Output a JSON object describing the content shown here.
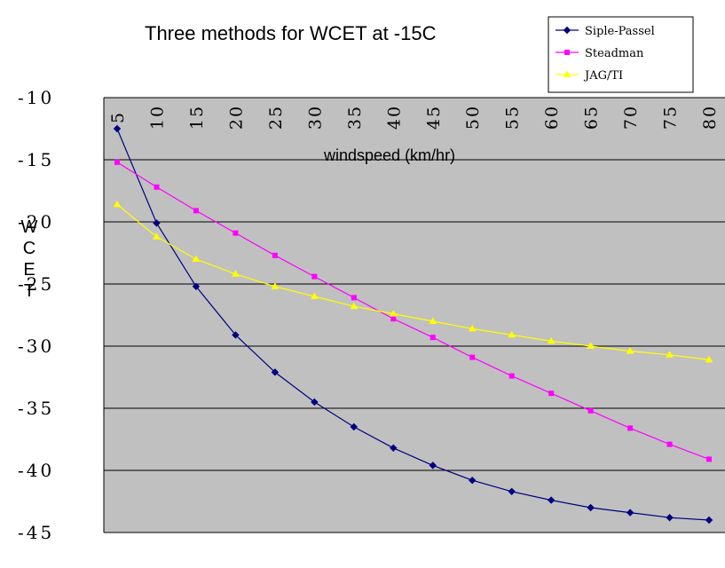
{
  "chart_data": {
    "type": "line",
    "title": "Three methods for WCET at -15C",
    "xlabel": "windspeed (km/hr)",
    "ylabel": "WCET",
    "x": [
      5,
      10,
      15,
      20,
      25,
      30,
      35,
      40,
      45,
      50,
      55,
      60,
      65,
      70,
      75,
      80
    ],
    "x_tick_labels": [
      "5",
      "10",
      "15",
      "20",
      "25",
      "30",
      "35",
      "40",
      "45",
      "50",
      "55",
      "60",
      "65",
      "70",
      "75",
      "80"
    ],
    "y_tick_labels": [
      "-10",
      "-15",
      "-20",
      "-25",
      "-30",
      "-35",
      "-40",
      "-45"
    ],
    "y_ticks": [
      -10,
      -15,
      -20,
      -25,
      -30,
      -35,
      -40,
      -45
    ],
    "ylim": [
      -45,
      -10
    ],
    "grid": true,
    "legend_position": "top-right",
    "background": "#c0c0c0",
    "series": [
      {
        "name": "Siple-Passel",
        "color": "#000080",
        "marker": "diamond",
        "values": [
          -12.5,
          -20.1,
          -25.2,
          -29.1,
          -32.1,
          -34.5,
          -36.5,
          -38.2,
          -39.6,
          -40.8,
          -41.7,
          -42.4,
          -43.0,
          -43.4,
          -43.8,
          -44.0
        ]
      },
      {
        "name": "Steadman",
        "color": "#ff00ff",
        "marker": "square",
        "values": [
          -15.2,
          -17.2,
          -19.1,
          -20.9,
          -22.7,
          -24.4,
          -26.1,
          -27.8,
          -29.3,
          -30.9,
          -32.4,
          -33.8,
          -35.2,
          -36.6,
          -37.9,
          -39.1
        ]
      },
      {
        "name": "JAG/TI",
        "color": "#ffff00",
        "marker": "triangle",
        "values": [
          -18.6,
          -21.2,
          -23.0,
          -24.2,
          -25.2,
          -26.0,
          -26.8,
          -27.4,
          -28.0,
          -28.6,
          -29.1,
          -29.6,
          -30.0,
          -30.4,
          -30.7,
          -31.1
        ]
      }
    ]
  }
}
